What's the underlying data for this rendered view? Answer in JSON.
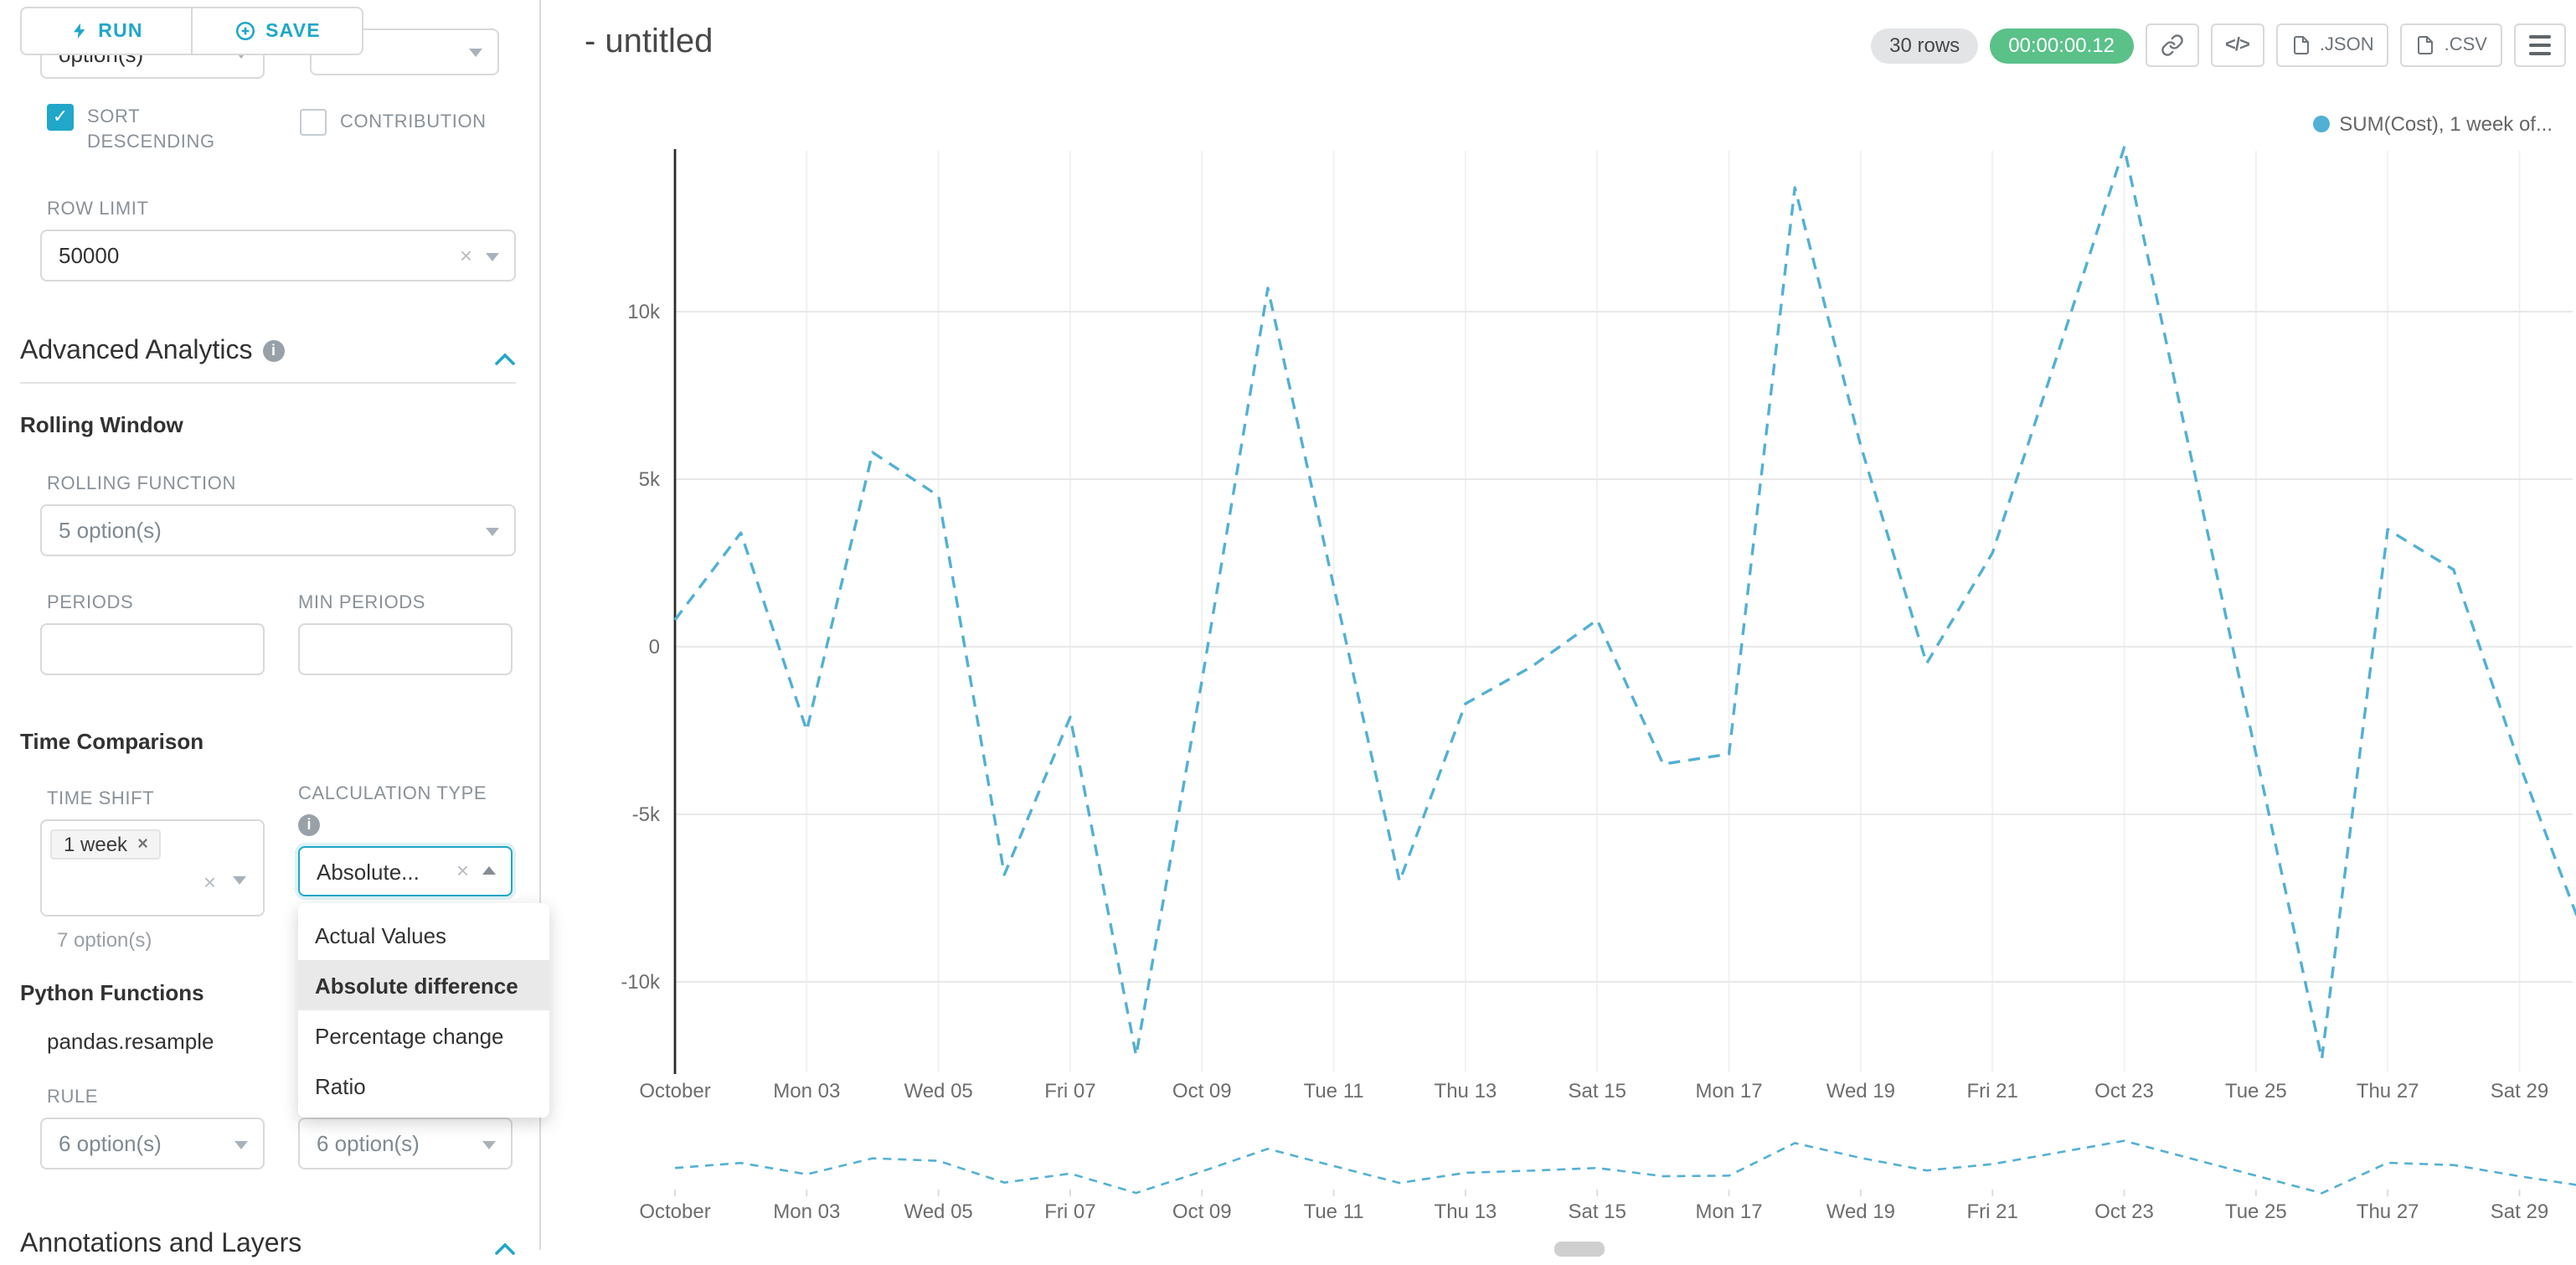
{
  "colors": {
    "accent": "#20a7c9",
    "timer_green": "#5ac189",
    "line": "#52b0d4"
  },
  "toolbar": {
    "run_label": "RUN",
    "save_label": "SAVE"
  },
  "left_panel": {
    "top_select_value": "option(s)",
    "sort_descending_label": "SORT DESCENDING",
    "contribution_label": "CONTRIBUTION",
    "row_limit_label": "ROW LIMIT",
    "row_limit_value": "50000",
    "advanced_analytics_title": "Advanced Analytics",
    "rolling_window_title": "Rolling Window",
    "rolling_function_label": "ROLLING FUNCTION",
    "rolling_function_value": "5 option(s)",
    "periods_label": "PERIODS",
    "min_periods_label": "MIN PERIODS",
    "time_comparison_title": "Time Comparison",
    "time_shift_label": "TIME SHIFT",
    "time_shift_tag": "1 week",
    "time_shift_helper": "7 option(s)",
    "calculation_type_label": "CALCULATION TYPE",
    "calculation_type_value": "Absolute...",
    "calculation_type_options": [
      "Actual Values",
      "Absolute difference",
      "Percentage change",
      "Ratio"
    ],
    "calculation_type_selected": "Absolute difference",
    "python_functions_title": "Python Functions",
    "python_function_name": "pandas.resample",
    "rule_label": "RULE",
    "rule_value": "6 option(s)",
    "rule_value_2": "6 option(s)",
    "annotations_title": "Annotations and Layers"
  },
  "main": {
    "title": "- untitled",
    "rows_badge": "30 rows",
    "timer_badge": "00:00:00.12",
    "code_button_label": "</>",
    "json_button_label": ".JSON",
    "csv_button_label": ".CSV",
    "legend_label": "SUM(Cost), 1 week of..."
  },
  "chart_data": {
    "type": "line",
    "title": "- untitled",
    "line_style": "dashed",
    "grid": true,
    "legend": [
      {
        "label": "SUM(Cost), 1 week of...",
        "color": "#52b0d4",
        "position": "top-right"
      }
    ],
    "ylim": [
      -13000,
      15100
    ],
    "y_ticks": [
      {
        "value": 10000,
        "label": "10k"
      },
      {
        "value": 5000,
        "label": "5k"
      },
      {
        "value": 0,
        "label": "0"
      },
      {
        "value": -5000,
        "label": "-5k"
      },
      {
        "value": -10000,
        "label": "-10k"
      }
    ],
    "x_ticks": [
      {
        "day": 1,
        "label": "October"
      },
      {
        "day": 3,
        "label": "Mon 03"
      },
      {
        "day": 5,
        "label": "Wed 05"
      },
      {
        "day": 7,
        "label": "Fri 07"
      },
      {
        "day": 9,
        "label": "Oct 09"
      },
      {
        "day": 11,
        "label": "Tue 11"
      },
      {
        "day": 13,
        "label": "Thu 13"
      },
      {
        "day": 15,
        "label": "Sat 15"
      },
      {
        "day": 17,
        "label": "Mon 17"
      },
      {
        "day": 19,
        "label": "Wed 19"
      },
      {
        "day": 21,
        "label": "Fri 21"
      },
      {
        "day": 23,
        "label": "Oct 23"
      },
      {
        "day": 25,
        "label": "Tue 25"
      },
      {
        "day": 27,
        "label": "Thu 27"
      },
      {
        "day": 29,
        "label": "Sat 29"
      }
    ],
    "series": [
      {
        "name": "SUM(Cost), 1 week of...",
        "x_days": [
          1,
          2,
          3,
          4,
          5,
          6,
          7,
          8,
          9,
          10,
          11,
          12,
          13,
          14,
          15,
          16,
          17,
          18,
          19,
          20,
          21,
          22,
          23,
          24,
          25,
          26,
          27,
          28,
          29,
          30
        ],
        "values": [
          800,
          3400,
          -2500,
          5800,
          4500,
          -6800,
          -2100,
          -12200,
          -1000,
          10700,
          1800,
          -7000,
          -1700,
          -600,
          800,
          -3500,
          -3200,
          13700,
          6000,
          -500,
          2800,
          8800,
          14900,
          5800,
          -3200,
          -12300,
          3500,
          2300,
          -3500,
          -8700
        ]
      }
    ]
  }
}
